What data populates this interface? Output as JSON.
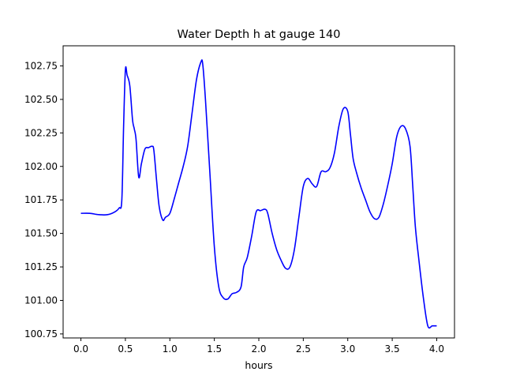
{
  "chart_data": {
    "type": "line",
    "title": "Water Depth h at gauge 140",
    "xlabel": "hours",
    "ylabel": "",
    "xlim": [
      -0.2,
      4.2
    ],
    "ylim": [
      100.72,
      102.9
    ],
    "xticks": [
      0.0,
      0.5,
      1.0,
      1.5,
      2.0,
      2.5,
      3.0,
      3.5,
      4.0
    ],
    "xtick_labels": [
      "0.0",
      "0.5",
      "1.0",
      "1.5",
      "2.0",
      "2.5",
      "3.0",
      "3.5",
      "4.0"
    ],
    "yticks": [
      100.75,
      101.0,
      101.25,
      101.5,
      101.75,
      102.0,
      102.25,
      102.5,
      102.75
    ],
    "ytick_labels": [
      "100.75",
      "101.00",
      "101.25",
      "101.50",
      "101.75",
      "102.00",
      "102.25",
      "102.50",
      "102.75"
    ],
    "grid": false,
    "series": [
      {
        "color": "#0000ff",
        "x": [
          0.0,
          0.1,
          0.2,
          0.3,
          0.38,
          0.43,
          0.46,
          0.48,
          0.5,
          0.52,
          0.55,
          0.58,
          0.6,
          0.62,
          0.65,
          0.68,
          0.72,
          0.76,
          0.8,
          0.82,
          0.85,
          0.88,
          0.92,
          0.95,
          1.0,
          1.05,
          1.1,
          1.15,
          1.2,
          1.25,
          1.3,
          1.35,
          1.37,
          1.4,
          1.45,
          1.5,
          1.55,
          1.6,
          1.65,
          1.7,
          1.75,
          1.8,
          1.83,
          1.87,
          1.92,
          1.97,
          2.02,
          2.07,
          2.1,
          2.15,
          2.2,
          2.25,
          2.3,
          2.35,
          2.4,
          2.45,
          2.5,
          2.55,
          2.6,
          2.65,
          2.7,
          2.75,
          2.8,
          2.85,
          2.9,
          2.95,
          3.0,
          3.03,
          3.06,
          3.1,
          3.15,
          3.2,
          3.25,
          3.3,
          3.35,
          3.4,
          3.45,
          3.5,
          3.55,
          3.6,
          3.65,
          3.7,
          3.73,
          3.76,
          3.8,
          3.85,
          3.9,
          3.95,
          4.0
        ],
        "values": [
          101.65,
          101.65,
          101.64,
          101.64,
          101.66,
          101.69,
          101.75,
          102.3,
          102.72,
          102.68,
          102.6,
          102.35,
          102.28,
          102.2,
          101.92,
          102.02,
          102.13,
          102.14,
          102.15,
          102.12,
          101.9,
          101.7,
          101.6,
          101.62,
          101.65,
          101.76,
          101.88,
          102.0,
          102.15,
          102.4,
          102.65,
          102.78,
          102.76,
          102.5,
          101.95,
          101.4,
          101.1,
          101.02,
          101.01,
          101.05,
          101.06,
          101.1,
          101.25,
          101.32,
          101.48,
          101.66,
          101.67,
          101.68,
          101.65,
          101.5,
          101.38,
          101.3,
          101.24,
          101.25,
          101.38,
          101.62,
          101.85,
          101.91,
          101.87,
          101.85,
          101.96,
          101.96,
          101.99,
          102.1,
          102.3,
          102.43,
          102.41,
          102.24,
          102.06,
          101.95,
          101.84,
          101.75,
          101.66,
          101.61,
          101.62,
          101.72,
          101.86,
          102.02,
          102.22,
          102.3,
          102.28,
          102.15,
          101.86,
          101.55,
          101.3,
          101.02,
          100.81,
          100.81,
          100.81
        ]
      }
    ]
  }
}
